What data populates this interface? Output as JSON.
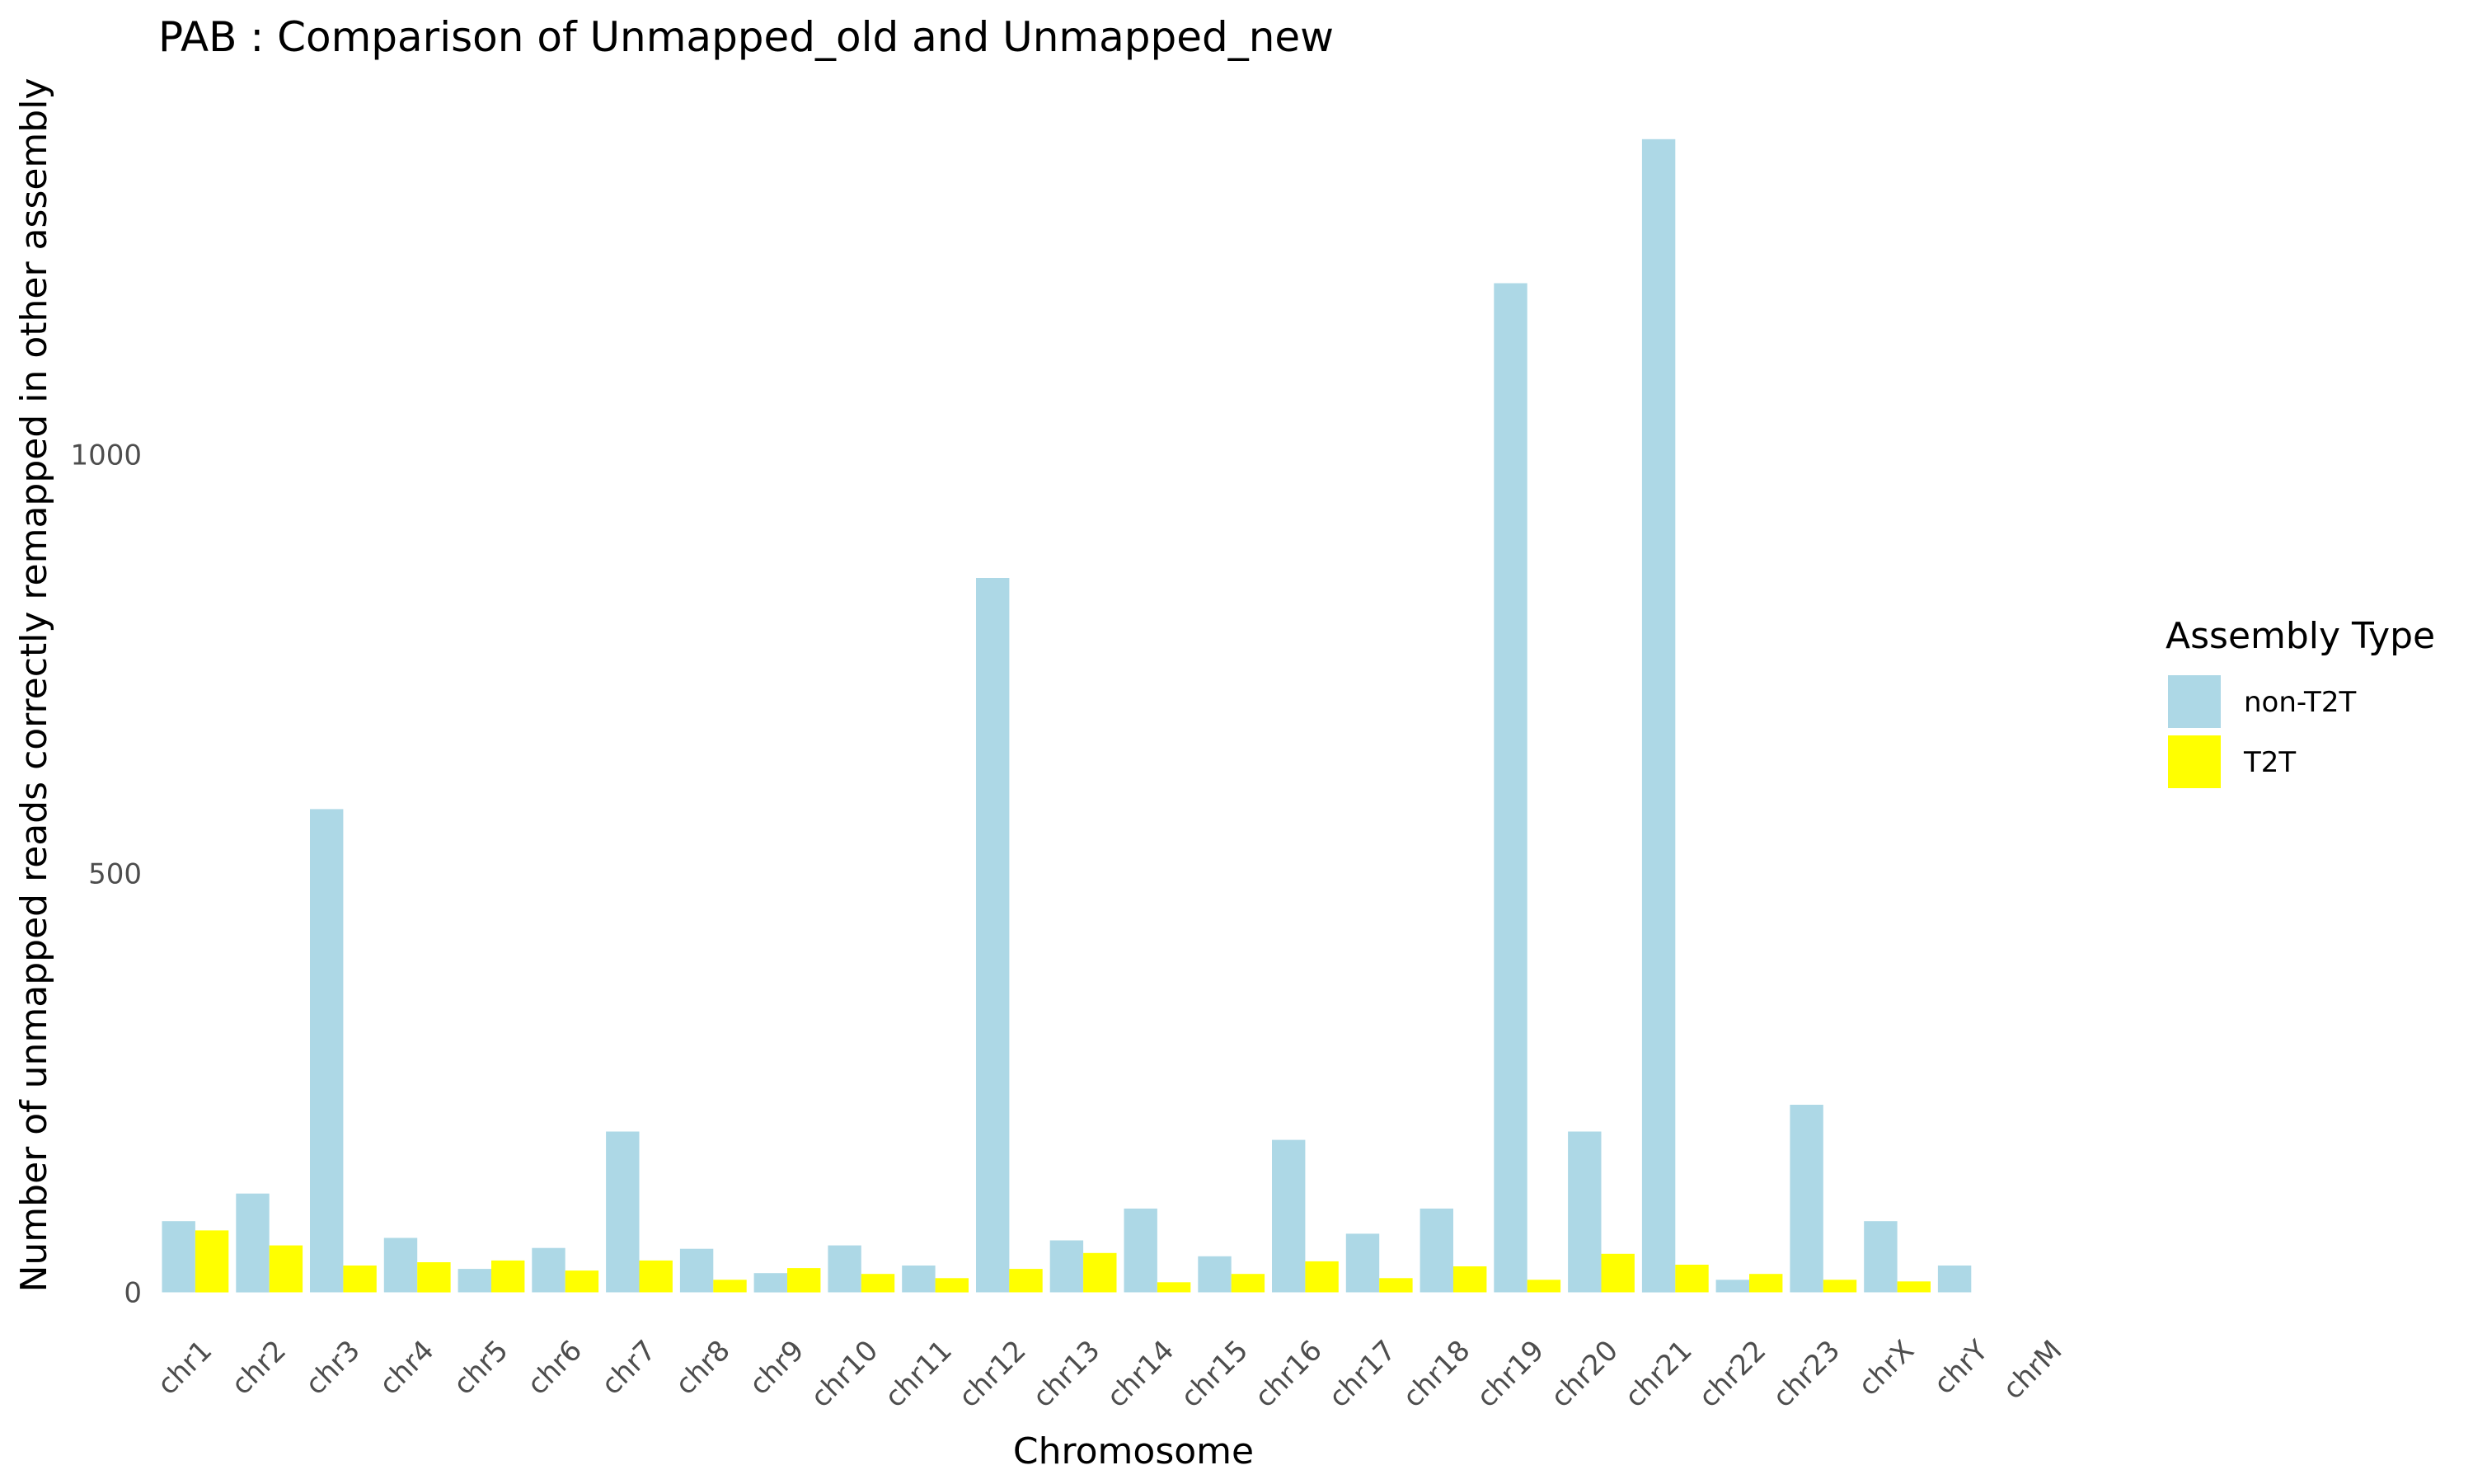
{
  "chart_data": {
    "type": "bar",
    "title": "PAB : Comparison of Unmapped_old and Unmapped_new",
    "xlabel": "Chromosome",
    "ylabel": "Number of unmapped reads correctly remapped in other assembly",
    "categories": [
      "chr1",
      "chr2",
      "chr3",
      "chr4",
      "chr5",
      "chr6",
      "chr7",
      "chr8",
      "chr9",
      "chr10",
      "chr11",
      "chr12",
      "chr13",
      "chr14",
      "chr15",
      "chr16",
      "chr17",
      "chr18",
      "chr19",
      "chr20",
      "chr21",
      "chr22",
      "chr23",
      "chrX",
      "chrY",
      "chrM"
    ],
    "series": [
      {
        "name": "non-T2T",
        "color": "#add8e6",
        "values": [
          85,
          118,
          577,
          65,
          28,
          53,
          192,
          52,
          23,
          56,
          32,
          853,
          62,
          100,
          43,
          182,
          70,
          100,
          1205,
          192,
          1377,
          15,
          224,
          85,
          32,
          0
        ]
      },
      {
        "name": "T2T",
        "color": "#ffff00",
        "values": [
          74,
          56,
          32,
          36,
          38,
          26,
          38,
          15,
          29,
          22,
          17,
          28,
          47,
          12,
          22,
          37,
          17,
          31,
          15,
          46,
          33,
          22,
          15,
          13,
          0,
          0
        ]
      }
    ],
    "yticks": [
      0,
      500,
      1000
    ],
    "ylim": [
      -30,
      1425
    ],
    "grid": false,
    "legend": {
      "title": "Assembly Type",
      "position": "right"
    }
  }
}
